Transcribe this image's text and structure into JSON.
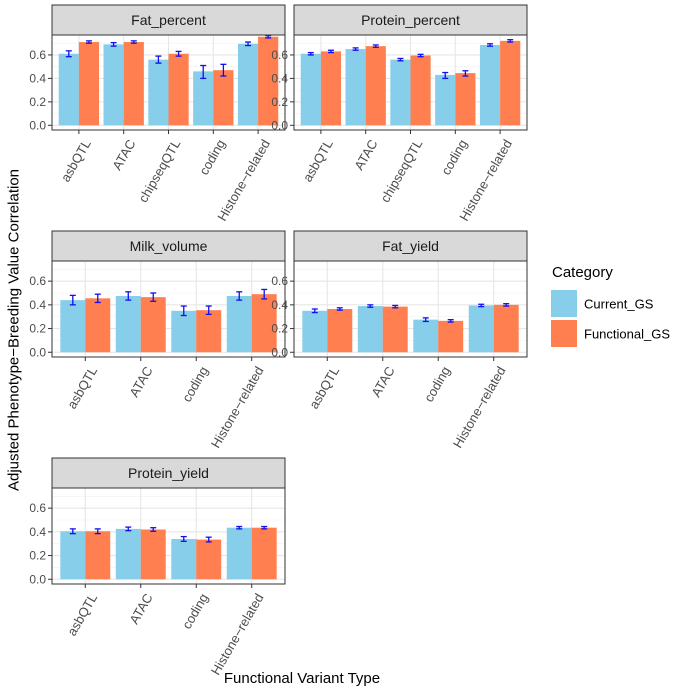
{
  "chart_data": {
    "type": "bar",
    "title": "",
    "xlabel": "Functional Variant Type",
    "ylabel": "Adjusted Phenotype−Breeding Value Correlation",
    "ylim": [
      -0.04,
      0.77
    ],
    "yticks": [
      "0.0",
      "0.2",
      "0.4",
      "0.6"
    ],
    "grid": true,
    "legend": {
      "title": "Category",
      "position": "right",
      "entries": [
        {
          "name": "Current_GS",
          "color": "#87CEEB"
        },
        {
          "name": "Functional_GS",
          "color": "#FF7F50"
        }
      ]
    },
    "error_bar_color": "#1010EE",
    "panels": [
      {
        "title": "Fat_percent",
        "categories": [
          "asbQTL",
          "ATAC",
          "chipseqQTL",
          "coding",
          "Histone−related"
        ],
        "series": [
          {
            "name": "Current_GS",
            "values": [
              0.61,
              0.69,
              0.56,
              0.46,
              0.695
            ],
            "err_low": [
              0.585,
              0.675,
              0.53,
              0.4,
              0.68
            ],
            "err_high": [
              0.635,
              0.705,
              0.59,
              0.51,
              0.71
            ]
          },
          {
            "name": "Functional_GS",
            "values": [
              0.71,
              0.71,
              0.61,
              0.47,
              0.755
            ],
            "err_low": [
              0.7,
              0.7,
              0.59,
              0.42,
              0.745
            ],
            "err_high": [
              0.72,
              0.72,
              0.63,
              0.52,
              0.765
            ]
          }
        ]
      },
      {
        "title": "Protein_percent",
        "categories": [
          "asbQTL",
          "ATAC",
          "chipseqQTL",
          "coding",
          "Histone−related"
        ],
        "series": [
          {
            "name": "Current_GS",
            "values": [
              0.61,
              0.65,
              0.56,
              0.43,
              0.685
            ],
            "err_low": [
              0.6,
              0.64,
              0.55,
              0.4,
              0.675
            ],
            "err_high": [
              0.62,
              0.66,
              0.57,
              0.45,
              0.695
            ]
          },
          {
            "name": "Functional_GS",
            "values": [
              0.63,
              0.675,
              0.595,
              0.445,
              0.72
            ],
            "err_low": [
              0.62,
              0.665,
              0.585,
              0.42,
              0.71
            ],
            "err_high": [
              0.64,
              0.685,
              0.605,
              0.465,
              0.73
            ]
          }
        ]
      },
      {
        "title": "Milk_volume",
        "categories": [
          "asbQTL",
          "ATAC",
          "coding",
          "Histone−related"
        ],
        "series": [
          {
            "name": "Current_GS",
            "values": [
              0.44,
              0.475,
              0.35,
              0.475
            ],
            "err_low": [
              0.4,
              0.44,
              0.31,
              0.44
            ],
            "err_high": [
              0.48,
              0.51,
              0.39,
              0.51
            ]
          },
          {
            "name": "Functional_GS",
            "values": [
              0.455,
              0.465,
              0.355,
              0.49
            ],
            "err_low": [
              0.42,
              0.43,
              0.32,
              0.45
            ],
            "err_high": [
              0.49,
              0.5,
              0.39,
              0.53
            ]
          }
        ]
      },
      {
        "title": "Fat_yield",
        "categories": [
          "asbQTL",
          "ATAC",
          "coding",
          "Histone−related"
        ],
        "series": [
          {
            "name": "Current_GS",
            "values": [
              0.35,
              0.39,
              0.275,
              0.395
            ],
            "err_low": [
              0.335,
              0.38,
              0.26,
              0.385
            ],
            "err_high": [
              0.365,
              0.4,
              0.29,
              0.405
            ]
          },
          {
            "name": "Functional_GS",
            "values": [
              0.365,
              0.385,
              0.265,
              0.4
            ],
            "err_low": [
              0.355,
              0.375,
              0.255,
              0.39
            ],
            "err_high": [
              0.375,
              0.395,
              0.275,
              0.41
            ]
          }
        ]
      },
      {
        "title": "Protein_yield",
        "categories": [
          "asbQTL",
          "ATAC",
          "coding",
          "Histone−related"
        ],
        "series": [
          {
            "name": "Current_GS",
            "values": [
              0.405,
              0.425,
              0.34,
              0.435
            ],
            "err_low": [
              0.385,
              0.41,
              0.32,
              0.425
            ],
            "err_high": [
              0.425,
              0.44,
              0.36,
              0.445
            ]
          },
          {
            "name": "Functional_GS",
            "values": [
              0.405,
              0.42,
              0.335,
              0.435
            ],
            "err_low": [
              0.385,
              0.405,
              0.315,
              0.425
            ],
            "err_high": [
              0.425,
              0.435,
              0.355,
              0.445
            ]
          }
        ]
      }
    ]
  }
}
